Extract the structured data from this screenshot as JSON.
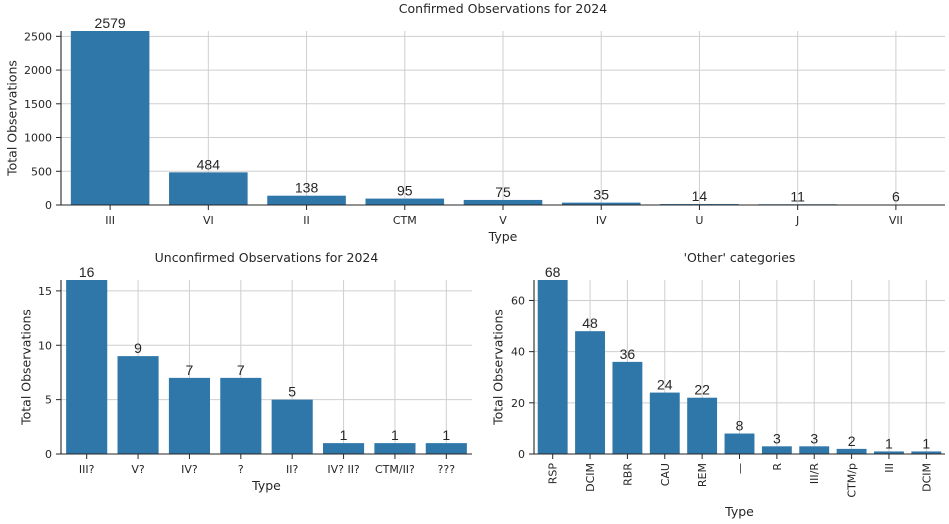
{
  "chart_data": [
    {
      "type": "bar",
      "title": "Confirmed Observations for 2024",
      "xlabel": "Type",
      "ylabel": "Total Observations",
      "categories": [
        "III",
        "VI",
        "II",
        "CTM",
        "V",
        "IV",
        "U",
        "J",
        "VII"
      ],
      "values": [
        2579,
        484,
        138,
        95,
        75,
        35,
        14,
        11,
        6
      ],
      "data_labels": [
        "2579",
        "484",
        "138",
        "95",
        "75",
        "35",
        "14",
        "11",
        "6"
      ],
      "ylim": [
        0,
        2579
      ],
      "yticks": [
        0,
        500,
        1000,
        1500,
        2000,
        2500
      ],
      "ytick_labels": [
        "0",
        "500",
        "1000",
        "1500",
        "2000",
        "2500"
      ],
      "grid": true,
      "bar_color": "#2f76a9",
      "rotate_xticks": false
    },
    {
      "type": "bar",
      "title": "Unconfirmed Observations for 2024",
      "xlabel": "Type",
      "ylabel": "Total Observations",
      "categories": [
        "III?",
        "V?",
        "IV?",
        "?",
        "II?",
        "IV? II?",
        "CTM/II?",
        "???"
      ],
      "values": [
        16,
        9,
        7,
        7,
        5,
        1,
        1,
        1
      ],
      "data_labels": [
        "16",
        "9",
        "7",
        "7",
        "5",
        "1",
        "1",
        "1"
      ],
      "ylim": [
        0,
        16
      ],
      "yticks": [
        0,
        5,
        10,
        15
      ],
      "ytick_labels": [
        "0",
        "5",
        "10",
        "15"
      ],
      "grid": true,
      "bar_color": "#2f76a9",
      "rotate_xticks": false
    },
    {
      "type": "bar",
      "title": "'Other' categories",
      "xlabel": "Type",
      "ylabel": "Total Observations",
      "categories": [
        "RSP",
        "DCIM",
        "RBR",
        "CAU",
        "REM",
        "—",
        "R",
        "III/R",
        "CTM/p",
        "III",
        "DCIM"
      ],
      "values": [
        68,
        48,
        36,
        24,
        22,
        8,
        3,
        3,
        2,
        1,
        1
      ],
      "data_labels": [
        "68",
        "48",
        "36",
        "24",
        "22",
        "8",
        "3",
        "3",
        "2",
        "1",
        "1"
      ],
      "ylim": [
        0,
        68
      ],
      "yticks": [
        0,
        20,
        40,
        60
      ],
      "ytick_labels": [
        "0",
        "20",
        "40",
        "60"
      ],
      "grid": true,
      "bar_color": "#2f76a9",
      "rotate_xticks": true
    }
  ]
}
